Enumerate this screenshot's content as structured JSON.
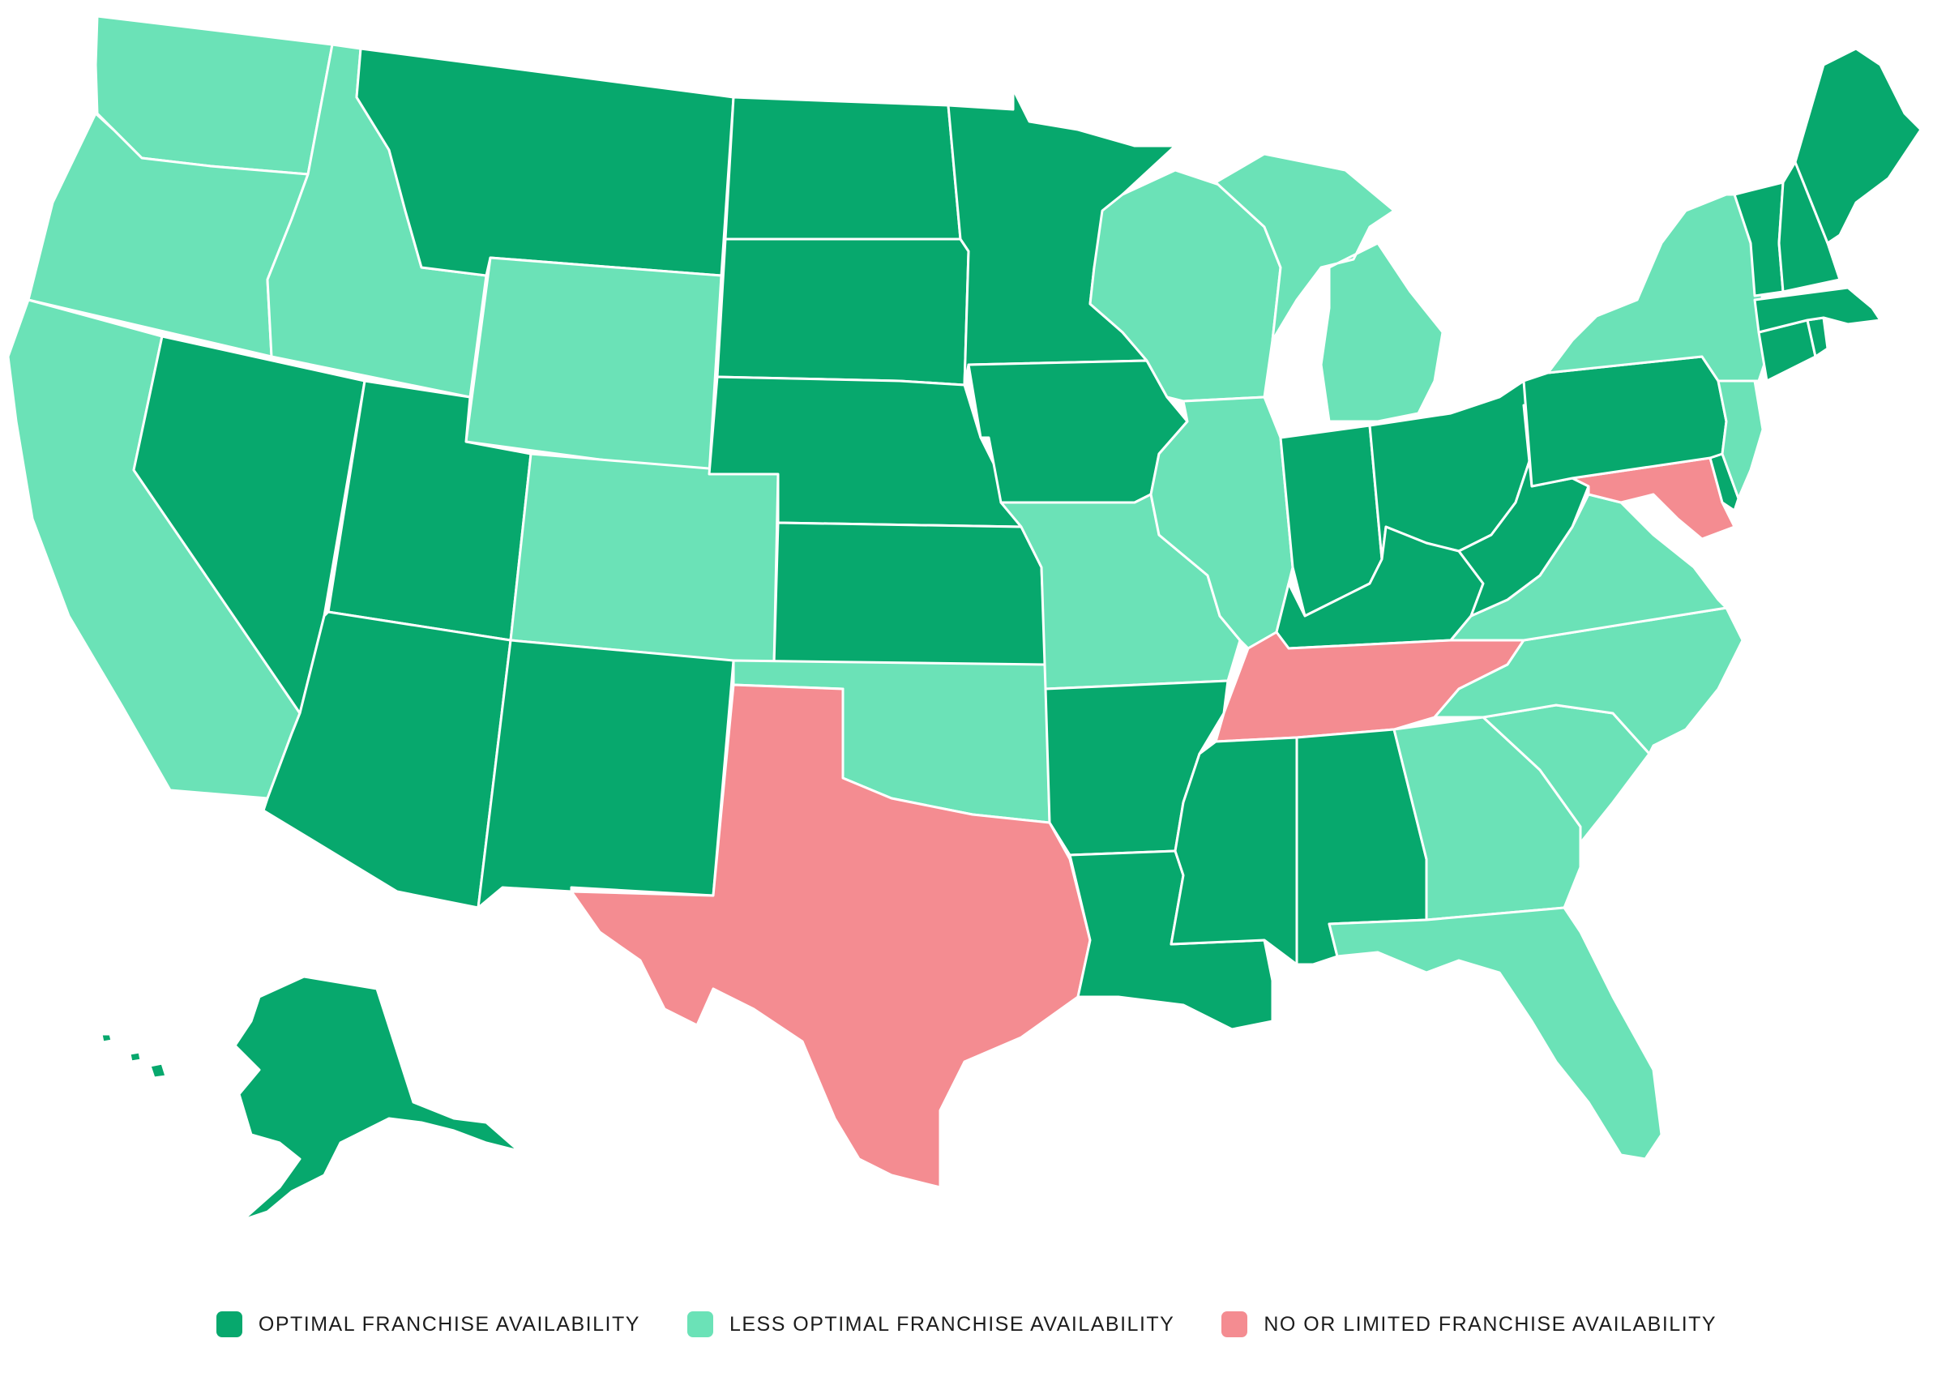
{
  "colors": {
    "optimal": "#07a86d",
    "less_optimal": "#6be2b7",
    "limited": "#f48c91",
    "background": "#ffffff",
    "border": "#ffffff"
  },
  "legend": [
    {
      "key": "optimal",
      "label": "OPTIMAL FRANCHISE AVAILABILITY"
    },
    {
      "key": "less_optimal",
      "label": "LESS OPTIMAL FRANCHISE AVAILABILITY"
    },
    {
      "key": "limited",
      "label": "NO OR LIMITED FRANCHISE AVAILABILITY"
    }
  ],
  "states": {
    "WA": "less_optimal",
    "OR": "less_optimal",
    "CA": "less_optimal",
    "ID": "less_optimal",
    "NV": "optimal",
    "MT": "optimal",
    "WY": "less_optimal",
    "UT": "optimal",
    "AZ": "optimal",
    "CO": "less_optimal",
    "NM": "optimal",
    "ND": "optimal",
    "SD": "optimal",
    "NE": "optimal",
    "KS": "optimal",
    "OK": "less_optimal",
    "TX": "limited",
    "MN": "optimal",
    "IA": "optimal",
    "MO": "less_optimal",
    "AR": "optimal",
    "LA": "optimal",
    "WI": "less_optimal",
    "IL": "less_optimal",
    "MI": "less_optimal",
    "IN": "optimal",
    "OH": "optimal",
    "KY": "optimal",
    "TN": "limited",
    "MS": "optimal",
    "AL": "optimal",
    "GA": "less_optimal",
    "FL": "less_optimal",
    "SC": "less_optimal",
    "NC": "less_optimal",
    "VA": "less_optimal",
    "WV": "optimal",
    "MD": "limited",
    "DE": "optimal",
    "PA": "optimal",
    "NJ": "less_optimal",
    "NY": "less_optimal",
    "CT": "optimal",
    "RI": "optimal",
    "MA": "optimal",
    "VT": "optimal",
    "NH": "optimal",
    "ME": "optimal",
    "AK": "optimal",
    "HI": "optimal"
  }
}
